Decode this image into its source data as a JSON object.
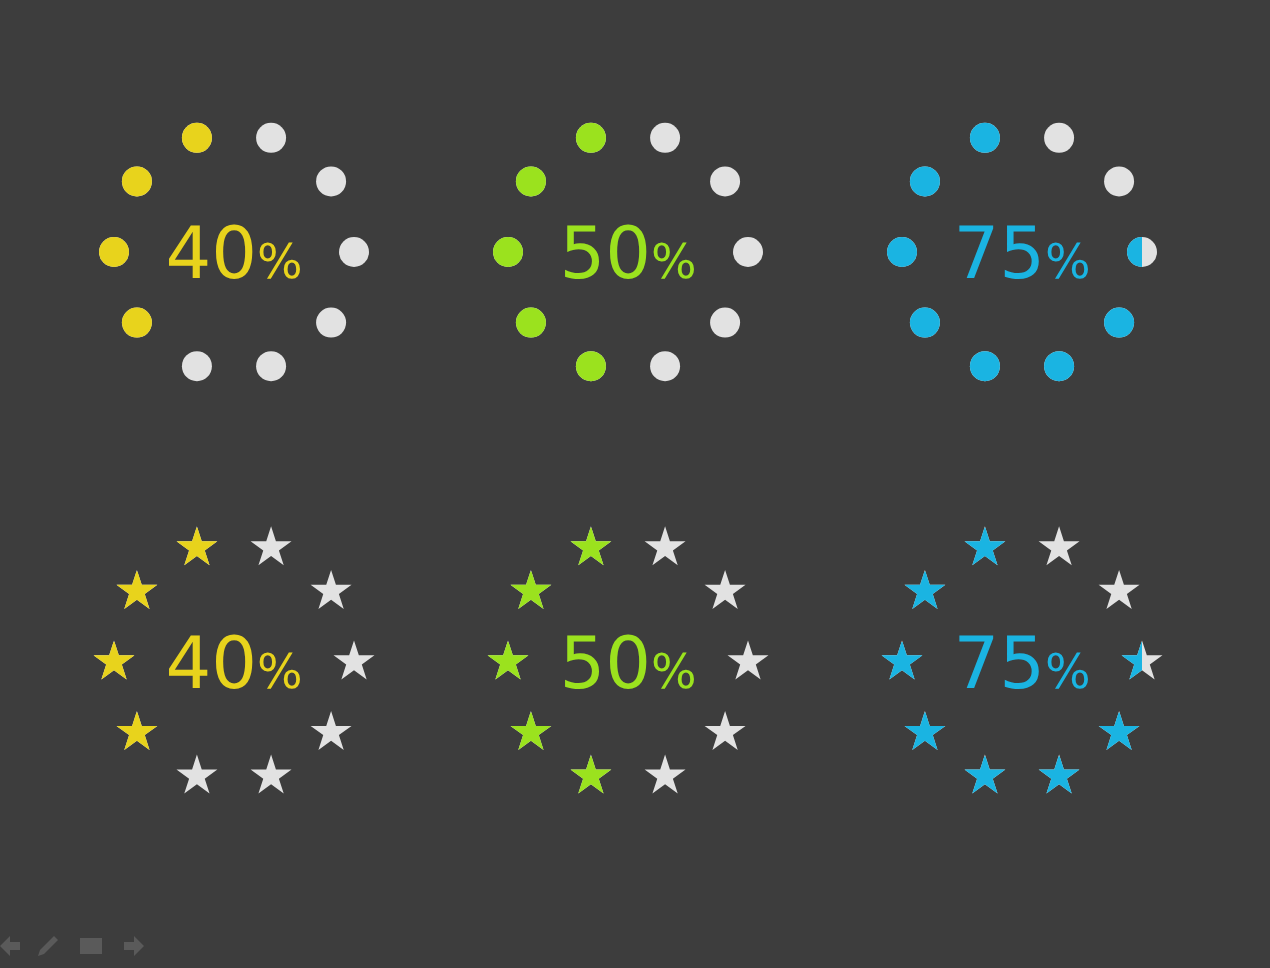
{
  "chart_data": [
    {
      "type": "other",
      "values": [
        40
      ],
      "value_labels": [
        "40%"
      ],
      "color": "#e8d31c"
    },
    {
      "type": "other",
      "values": [
        50
      ],
      "value_labels": [
        "50%"
      ],
      "color": "#9be21e"
    },
    {
      "type": "other",
      "values": [
        75
      ],
      "value_labels": [
        "75%"
      ],
      "color": "#1ab4e2"
    },
    {
      "type": "other",
      "values": [
        40
      ],
      "value_labels": [
        "40%"
      ],
      "color": "#e8d31c"
    },
    {
      "type": "other",
      "values": [
        50
      ],
      "value_labels": [
        "50%"
      ],
      "color": "#9be21e"
    },
    {
      "type": "other",
      "values": [
        75
      ],
      "value_labels": [
        "75%"
      ],
      "color": "#1ab4e2"
    }
  ]
}
